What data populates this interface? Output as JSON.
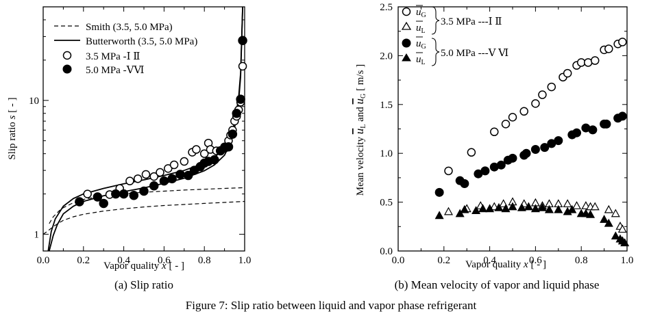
{
  "figure": {
    "caption": "Figure 7: Slip ratio between liquid and vapor phase refrigerant"
  },
  "chart_data": [
    {
      "type": "line",
      "caption": "(a) Slip ratio",
      "xlabel": "Vapor quality",
      "xlabel_var": "x",
      "xlabel_unit": "[ - ]",
      "ylabel": "Slip ratio",
      "ylabel_var": "s",
      "ylabel_unit": "[ - ]",
      "xlim": [
        0.0,
        1.0
      ],
      "ylim": [
        0.75,
        50
      ],
      "yscale": "log",
      "x_ticks": [
        "0.0",
        "0.2",
        "0.4",
        "0.6",
        "0.8",
        "1.0"
      ],
      "y_ticks": [
        {
          "value": 1,
          "label": "1"
        },
        {
          "value": 10,
          "label": "10"
        }
      ],
      "legend_position": "top-left",
      "series": [
        {
          "name": "Smith (3.5, 5.0 MPa)",
          "kind": "dashed-line",
          "color": "#000000",
          "curves": [
            {
              "x": [
                0.03,
                0.05,
                0.08,
                0.1,
                0.15,
                0.2,
                0.25,
                0.3,
                0.4,
                0.5,
                0.6,
                0.7,
                0.8,
                0.9,
                1.0
              ],
              "y": [
                1.2,
                1.35,
                1.5,
                1.58,
                1.72,
                1.82,
                1.88,
                1.94,
                2.01,
                2.06,
                2.1,
                2.14,
                2.17,
                2.2,
                2.23
              ]
            },
            {
              "x": [
                0.0,
                0.02,
                0.05,
                0.08,
                0.1,
                0.15,
                0.2,
                0.25,
                0.3,
                0.4,
                0.5,
                0.6,
                0.7,
                0.8,
                0.9,
                1.0
              ],
              "y": [
                1.0,
                1.05,
                1.14,
                1.22,
                1.27,
                1.35,
                1.41,
                1.45,
                1.49,
                1.55,
                1.6,
                1.64,
                1.67,
                1.7,
                1.73,
                1.76
              ]
            }
          ]
        },
        {
          "name": "Butterworth (3.5, 5.0 MPa)",
          "kind": "solid-line",
          "color": "#000000",
          "curves": [
            {
              "x": [
                0.025,
                0.04,
                0.06,
                0.1,
                0.15,
                0.2,
                0.3,
                0.4,
                0.5,
                0.6,
                0.7,
                0.8,
                0.85,
                0.9,
                0.93,
                0.95,
                0.97,
                0.98,
                0.99
              ],
              "y": [
                0.75,
                1.05,
                1.3,
                1.62,
                1.85,
                2.0,
                2.2,
                2.38,
                2.55,
                2.75,
                3.0,
                3.4,
                3.75,
                4.4,
                5.4,
                6.8,
                10.5,
                16,
                50
              ]
            },
            {
              "x": [
                0.03,
                0.05,
                0.07,
                0.1,
                0.15,
                0.2,
                0.3,
                0.4,
                0.5,
                0.6,
                0.7,
                0.8,
                0.85,
                0.9,
                0.93,
                0.95,
                0.97,
                0.98,
                0.99
              ],
              "y": [
                0.75,
                0.98,
                1.18,
                1.42,
                1.62,
                1.76,
                1.94,
                2.08,
                2.22,
                2.4,
                2.62,
                2.98,
                3.3,
                3.9,
                4.8,
                6.2,
                9.8,
                15,
                50
              ]
            }
          ]
        },
        {
          "name": "3.5 MPa -Ⅰ Ⅱ",
          "kind": "open-circle",
          "color": "#000000",
          "x": [
            0.22,
            0.33,
            0.38,
            0.43,
            0.47,
            0.51,
            0.55,
            0.58,
            0.62,
            0.65,
            0.7,
            0.74,
            0.76,
            0.8,
            0.82,
            0.83,
            0.86,
            0.9,
            0.92,
            0.93,
            0.94,
            0.95,
            0.96,
            0.97,
            0.98,
            0.99
          ],
          "y": [
            2.0,
            1.98,
            2.2,
            2.5,
            2.6,
            2.8,
            2.7,
            2.9,
            3.1,
            3.3,
            3.5,
            4.1,
            4.3,
            4.0,
            4.8,
            4.3,
            4.2,
            4.5,
            5.0,
            5.5,
            6.0,
            7.0,
            7.6,
            8.5,
            9.7,
            18.0
          ]
        },
        {
          "name": "5.0 MPa -ⅤⅥ",
          "kind": "filled-circle",
          "color": "#000000",
          "x": [
            0.18,
            0.27,
            0.3,
            0.36,
            0.4,
            0.45,
            0.5,
            0.55,
            0.6,
            0.64,
            0.68,
            0.72,
            0.75,
            0.78,
            0.8,
            0.82,
            0.85,
            0.88,
            0.9,
            0.92,
            0.94,
            0.96,
            0.98,
            0.99
          ],
          "y": [
            1.75,
            1.9,
            1.7,
            2.0,
            2.0,
            1.95,
            2.1,
            2.3,
            2.5,
            2.6,
            2.8,
            2.75,
            3.0,
            3.2,
            3.4,
            3.5,
            3.6,
            4.2,
            4.4,
            4.5,
            5.6,
            8.0,
            10.2,
            28.0
          ]
        }
      ]
    },
    {
      "type": "scatter",
      "caption": "(b) Mean velocity of vapor and liquid phase",
      "xlabel": "Vapor quality",
      "xlabel_var": "x",
      "xlabel_unit": "[ - ]",
      "ylabel": "Mean velocity",
      "ylabel_var1": "u",
      "ylabel_sub1": "L",
      "ylabel_conj": "and",
      "ylabel_var2": "u",
      "ylabel_sub2": "G",
      "ylabel_unit": "[ m/s ]",
      "xlim": [
        0.0,
        1.0
      ],
      "ylim": [
        0.0,
        2.5
      ],
      "x_ticks": [
        "0.0",
        "0.2",
        "0.4",
        "0.6",
        "0.8",
        "1.0"
      ],
      "y_ticks": [
        "0.0",
        "0.5",
        "1.0",
        "1.5",
        "2.0",
        "2.5"
      ],
      "legend_position": "top-left",
      "legend_groups": [
        {
          "label": "3.5 MPa ---Ⅰ Ⅱ",
          "entries": [
            {
              "var": "u",
              "sub": "G",
              "marker": "open-circle"
            },
            {
              "var": "u",
              "sub": "L",
              "marker": "open-triangle"
            }
          ]
        },
        {
          "label": "5.0 MPa ---Ⅴ Ⅵ",
          "entries": [
            {
              "var": "u",
              "sub": "G",
              "marker": "filled-circle"
            },
            {
              "var": "u",
              "sub": "L",
              "marker": "filled-triangle"
            }
          ]
        }
      ],
      "series": [
        {
          "name": "uG 3.5 MPa",
          "marker": "open-circle",
          "color": "#000000",
          "x": [
            0.22,
            0.32,
            0.42,
            0.47,
            0.5,
            0.55,
            0.6,
            0.63,
            0.67,
            0.72,
            0.74,
            0.78,
            0.8,
            0.83,
            0.86,
            0.9,
            0.92,
            0.96,
            0.98
          ],
          "y": [
            0.82,
            1.01,
            1.22,
            1.3,
            1.37,
            1.43,
            1.51,
            1.6,
            1.68,
            1.78,
            1.82,
            1.9,
            1.93,
            1.93,
            1.95,
            2.06,
            2.07,
            2.12,
            2.14
          ]
        },
        {
          "name": "uL 3.5 MPa",
          "marker": "open-triangle",
          "color": "#000000",
          "x": [
            0.22,
            0.3,
            0.36,
            0.42,
            0.46,
            0.5,
            0.55,
            0.6,
            0.63,
            0.66,
            0.7,
            0.74,
            0.78,
            0.82,
            0.84,
            0.86,
            0.92,
            0.95,
            0.97,
            0.98
          ],
          "y": [
            0.4,
            0.43,
            0.46,
            0.45,
            0.48,
            0.5,
            0.48,
            0.49,
            0.46,
            0.48,
            0.48,
            0.48,
            0.46,
            0.46,
            0.45,
            0.45,
            0.42,
            0.38,
            0.25,
            0.22
          ]
        },
        {
          "name": "uG 5.0 MPa",
          "marker": "filled-circle",
          "color": "#000000",
          "x": [
            0.18,
            0.27,
            0.29,
            0.35,
            0.38,
            0.42,
            0.45,
            0.48,
            0.5,
            0.55,
            0.56,
            0.6,
            0.64,
            0.67,
            0.7,
            0.76,
            0.78,
            0.82,
            0.85,
            0.9,
            0.91,
            0.96,
            0.98
          ],
          "y": [
            0.6,
            0.72,
            0.69,
            0.79,
            0.82,
            0.86,
            0.88,
            0.93,
            0.95,
            0.98,
            1.0,
            1.04,
            1.06,
            1.1,
            1.13,
            1.19,
            1.21,
            1.26,
            1.24,
            1.3,
            1.3,
            1.36,
            1.38
          ]
        },
        {
          "name": "uL 5.0 MPa",
          "marker": "filled-triangle",
          "color": "#000000",
          "x": [
            0.18,
            0.27,
            0.29,
            0.34,
            0.37,
            0.4,
            0.44,
            0.47,
            0.5,
            0.54,
            0.57,
            0.6,
            0.63,
            0.66,
            0.7,
            0.74,
            0.76,
            0.8,
            0.82,
            0.84,
            0.9,
            0.92,
            0.95,
            0.97,
            0.98,
            0.99
          ],
          "y": [
            0.36,
            0.38,
            0.42,
            0.41,
            0.43,
            0.43,
            0.44,
            0.43,
            0.45,
            0.44,
            0.45,
            0.43,
            0.44,
            0.42,
            0.42,
            0.4,
            0.42,
            0.38,
            0.38,
            0.37,
            0.32,
            0.28,
            0.15,
            0.12,
            0.1,
            0.08
          ]
        }
      ]
    }
  ]
}
